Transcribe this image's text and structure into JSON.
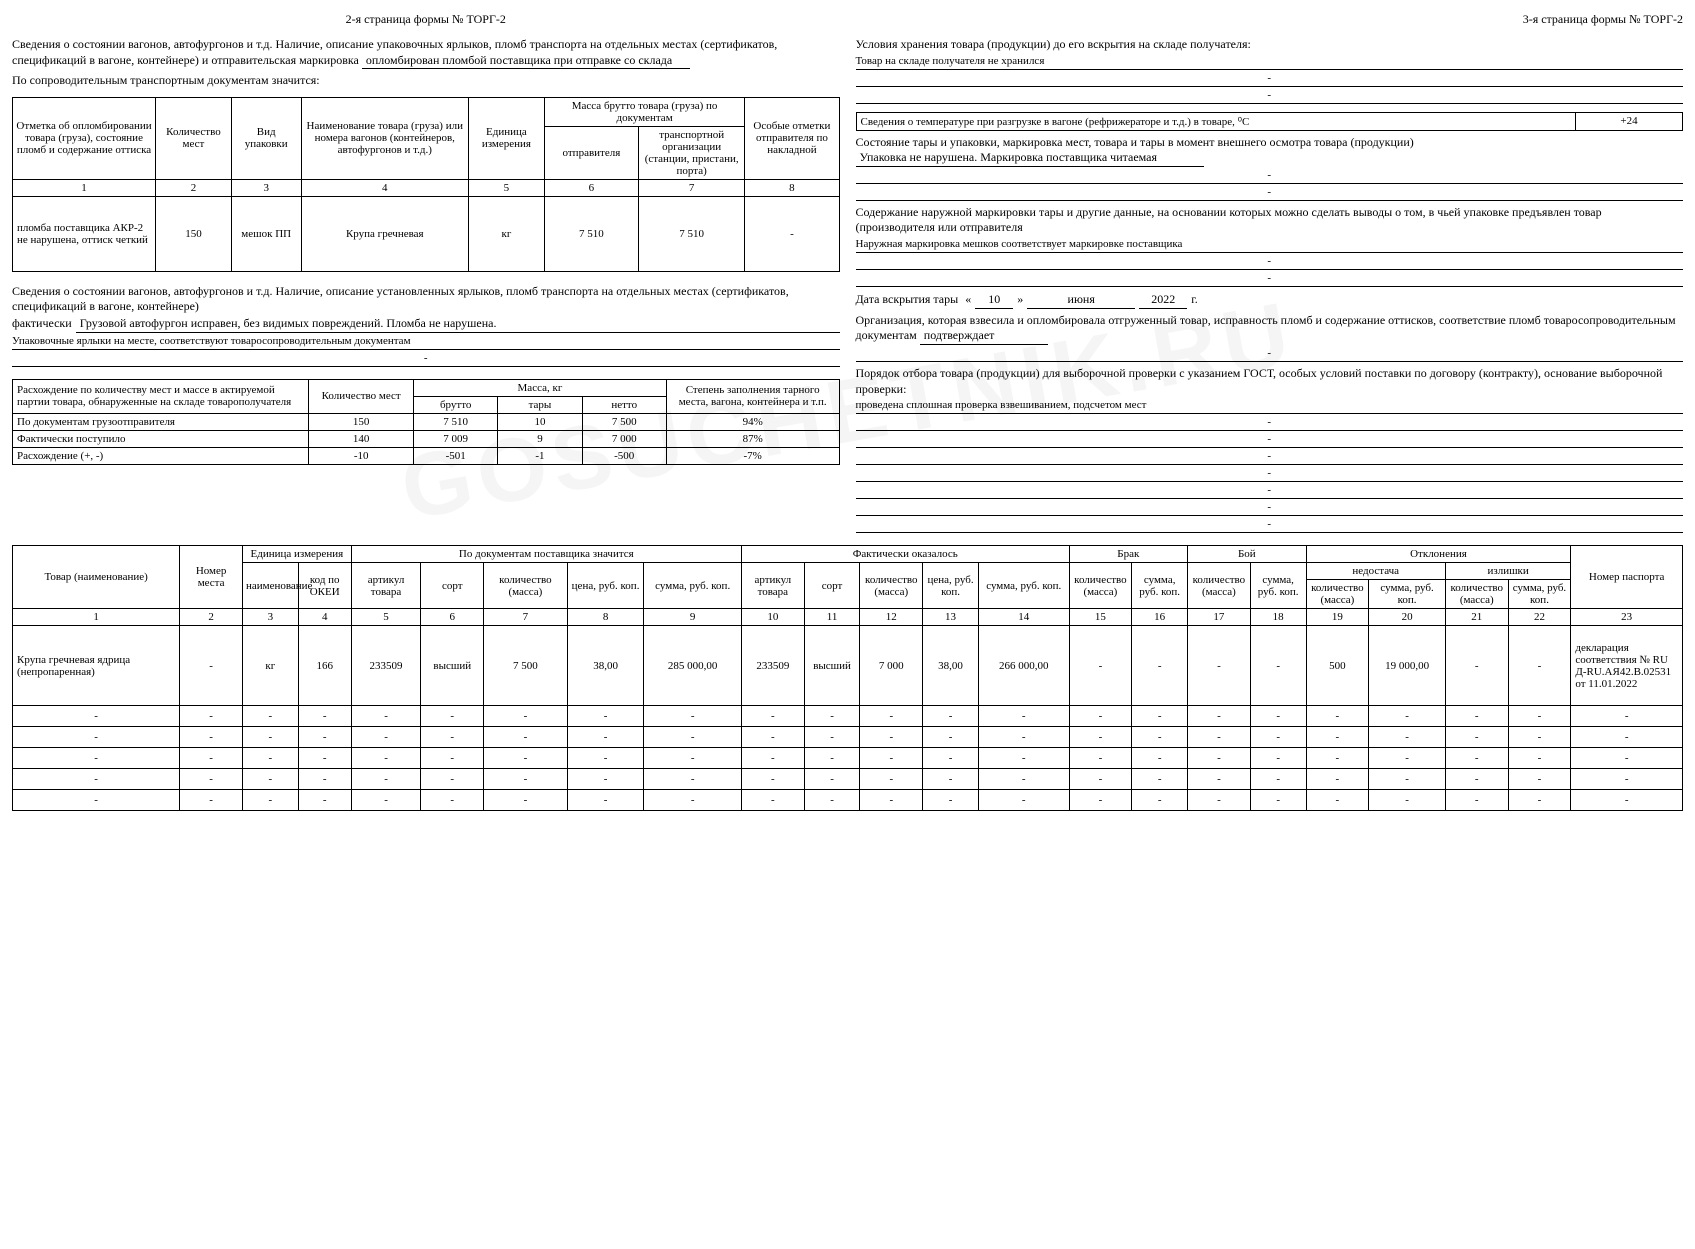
{
  "page2": {
    "title": "2-я страница формы № ТОРГ-2",
    "intro1": "Сведения о состоянии вагонов, автофургонов и т.д. Наличие, описание упаковочных ярлыков, пломб транспорта на отдельных местах (сертификатов, спецификаций в вагоне, контейнере) и отправительская маркировка",
    "intro1_val": "опломбирован пломбой поставщика при отправке со склада",
    "intro2": "По сопроводительным транспортным документам значится:",
    "t1_head": {
      "c1": "Отметка об опломбировании товара (груза), состояние пломб и содержание оттиска",
      "c2": "Количество мест",
      "c3": "Вид упаковки",
      "c4": "Наименование товара (груза) или номера вагонов (контейнеров, автофургонов и т.д.)",
      "c5": "Единица измерения",
      "c6g": "Масса брутто товара (груза) по документам",
      "c6": "отправителя",
      "c7": "транспортной организации (станции, пристани, порта)",
      "c8": "Особые отметки отправителя по накладной",
      "n1": "1",
      "n2": "2",
      "n3": "3",
      "n4": "4",
      "n5": "5",
      "n6": "6",
      "n7": "7",
      "n8": "8"
    },
    "t1_row": {
      "c1": "пломба поставщика АКР-2 не нарушена, оттиск четкий",
      "c2": "150",
      "c3": "мешок ПП",
      "c4": "Крупа гречневая",
      "c5": "кг",
      "c6": "7 510",
      "c7": "7 510",
      "c8": "-"
    },
    "intro3": "Сведения о состоянии вагонов, автофургонов и т.д. Наличие, описание установленных ярлыков, пломб транспорта на отдельных местах (сертификатов, спецификаций в вагоне, контейнере)",
    "intro3_l": "фактически",
    "intro3_val": "Грузовой автофургон исправен, без видимых повреждений. Пломба не нарушена.",
    "intro3_val2": "Упаковочные ярлыки на месте, соответствуют товаросопроводительным документам",
    "dash": "-",
    "t2_head": {
      "c1": "Расхождение по количеству мест и массе в актируемой партии товара, обнаруженные на складе товарополучателя",
      "c2": "Количество мест",
      "cmg": "Масса, кг",
      "cm1": "брутто",
      "cm2": "тары",
      "cm3": "нетто",
      "c6": "Степень заполнения тарного места, вагона, контейнера и т.п."
    },
    "t2_rows": [
      {
        "l": "По документам грузоотправителя",
        "qty": "150",
        "b": "7 510",
        "t": "10",
        "n": "7 500",
        "f": "94%"
      },
      {
        "l": "Фактически поступило",
        "qty": "140",
        "b": "7 009",
        "t": "9",
        "n": "7 000",
        "f": "87%"
      },
      {
        "l": "Расхождение (+, -)",
        "qty": "-10",
        "b": "-501",
        "t": "-1",
        "n": "-500",
        "f": "-7%"
      }
    ]
  },
  "page3": {
    "title": "3-я страница формы № ТОРГ-2",
    "l1": "Условия хранения товара (продукции) до его вскрытия на складе получателя:",
    "l1v": "Товар на складе получателя не хранился",
    "temp_l": "Сведения о температуре при разгрузке в вагоне (рефрижераторе и т.д.) в товаре, ⁰С",
    "temp_v": "+24",
    "pack_l": "Состояние тары и упаковки, маркировка мест, товара и тары в момент внешнего осмотра товара (продукции)",
    "pack_v": "Упаковка не нарушена. Маркировка поставщика читаемая",
    "mark_l1": "Содержание наружной маркировки тары и другие данные, на основании которых можно сделать выводы о том, в чьей упаковке предъявлен товар (производителя или отправителя",
    "mark_v": "Наружная маркировка мешков соответствует маркировке поставщика",
    "open_l": "Дата вскрытия тары",
    "open_d": "10",
    "open_m": "июня",
    "open_y": "2022",
    "open_g": "г.",
    "org_l": "Организация, которая взвесила и опломбировала отгруженный товар, исправность пломб и содержание оттисков, соответствие пломб товаросопроводительным документам",
    "org_v": "подтверждает",
    "sel_l": "Порядок отбора товара (продукции) для выборочной проверки с указанием ГОСТ, особых условий поставки по договору (контракту), основание выборочной проверки:",
    "sel_v": "проведена сплошная проверка взвешиванием, подсчетом мест",
    "dash": "-"
  },
  "t3_head": {
    "goods": "Товар (наименование)",
    "place": "Номер места",
    "unitg": "Единица измерения",
    "unit1": "наименование",
    "unit2": "код по ОКЕИ",
    "docg": "По документам поставщика значится",
    "doc1": "артикул товара",
    "doc2": "сорт",
    "doc3": "количество (масса)",
    "doc4": "цена, руб. коп.",
    "doc5": "сумма, руб. коп.",
    "factg": "Фактически оказалось",
    "fact1": "артикул товара",
    "fact2": "сорт",
    "fact3": "количество (масса)",
    "fact4": "цена, руб. коп.",
    "fact5": "сумма, руб. коп.",
    "brakg": "Брак",
    "brak1": "количество (масса)",
    "brak2": "сумма, руб. коп.",
    "boyg": "Бой",
    "boy1": "количество (масса)",
    "boy2": "сумма, руб. коп.",
    "devg": "Отклонения",
    "shortg": "недостача",
    "surpg": "излишки",
    "dev1": "количество (масса)",
    "dev2": "сумма, руб. коп.",
    "dev3": "количество (масса)",
    "dev4": "сумма, руб. коп.",
    "pass": "Номер паспорта",
    "n": [
      "1",
      "2",
      "3",
      "4",
      "5",
      "6",
      "7",
      "8",
      "9",
      "10",
      "11",
      "12",
      "13",
      "14",
      "15",
      "16",
      "17",
      "18",
      "19",
      "20",
      "21",
      "22",
      "23"
    ]
  },
  "t3_row": {
    "goods": "Крупа гречневая ядрица (непропаренная)",
    "place": "-",
    "unit1": "кг",
    "unit2": "166",
    "doc1": "233509",
    "doc2": "высший",
    "doc3": "7 500",
    "doc4": "38,00",
    "doc5": "285 000,00",
    "fact1": "233509",
    "fact2": "высший",
    "fact3": "7 000",
    "fact4": "38,00",
    "fact5": "266 000,00",
    "brak1": "-",
    "brak2": "-",
    "boy1": "-",
    "boy2": "-",
    "dev1": "500",
    "dev2": "19 000,00",
    "dev3": "-",
    "dev4": "-",
    "pass": "декларация соответствия № RU Д-RU.АЯ42.В.02531 от 11.01.2022"
  },
  "dash": "-",
  "watermark": "GOSUCHETNIK.RU"
}
